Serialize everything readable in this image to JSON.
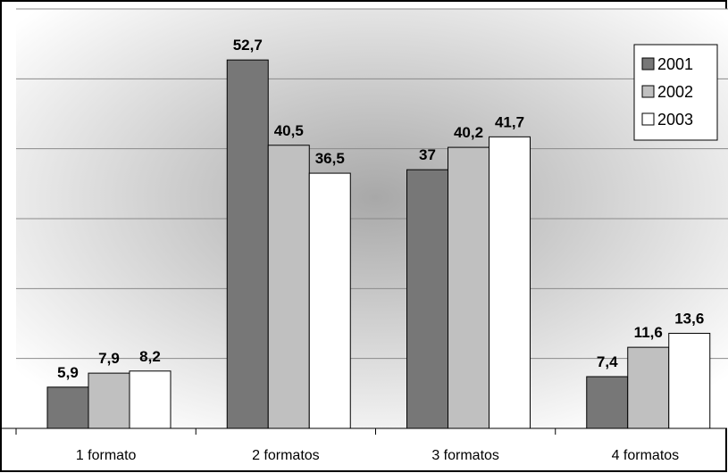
{
  "chart_data": {
    "type": "bar",
    "categories": [
      "1 formato",
      "2 formatos",
      "3 formatos",
      "4 formatos"
    ],
    "series": [
      {
        "name": "2001",
        "values": [
          5.9,
          52.7,
          37,
          7.4
        ],
        "labels": [
          "5,9",
          "52,7",
          "37",
          "7,4"
        ],
        "color": "#777777"
      },
      {
        "name": "2002",
        "values": [
          7.9,
          40.5,
          40.2,
          11.6
        ],
        "labels": [
          "7,9",
          "40,5",
          "40,2",
          "11,6"
        ],
        "color": "#c0c0c0"
      },
      {
        "name": "2003",
        "values": [
          8.2,
          36.5,
          41.7,
          13.6
        ],
        "labels": [
          "8,2",
          "36,5",
          "41,7",
          "13,6"
        ],
        "color": "#ffffff"
      }
    ],
    "ylim": [
      0,
      60
    ],
    "grid": true,
    "legend": "top-right",
    "title": "",
    "xlabel": "",
    "ylabel": ""
  }
}
